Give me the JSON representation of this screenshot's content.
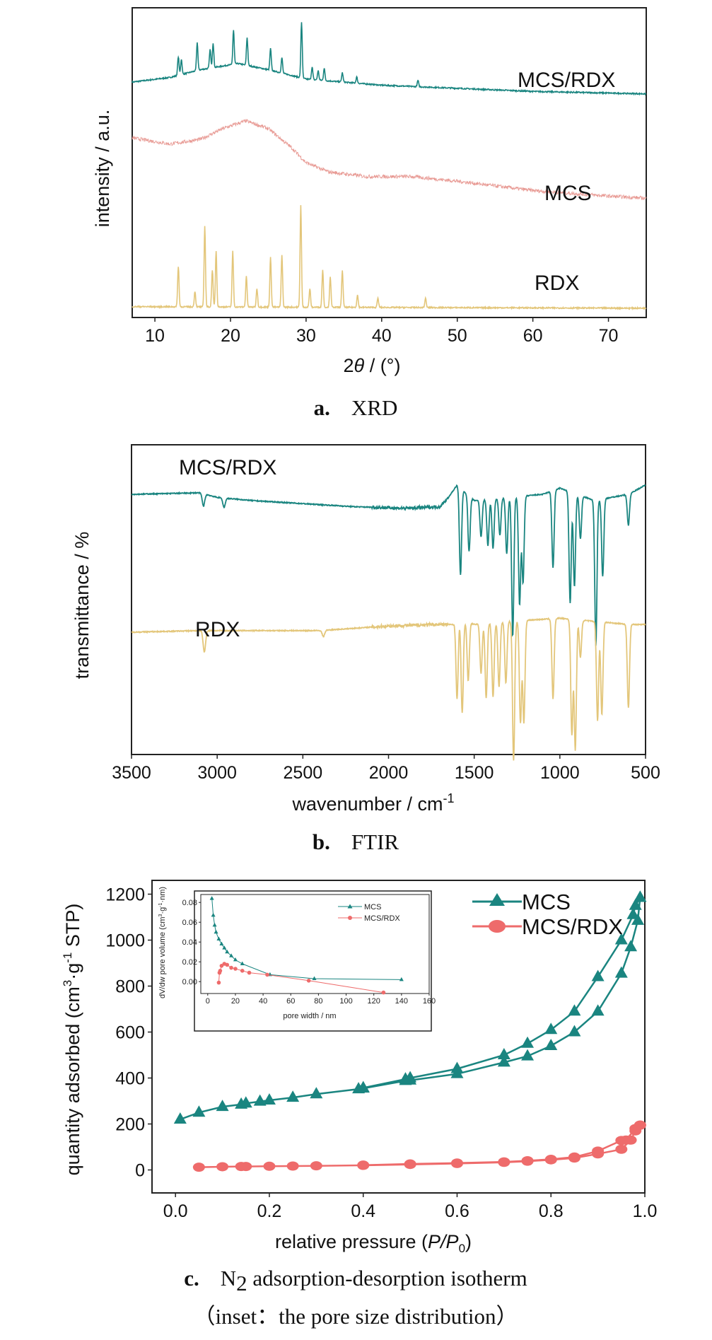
{
  "chart_data": [
    {
      "id": "xrd",
      "type": "line",
      "xlabel": "2θ / (°)",
      "ylabel": "intensity / a.u.",
      "xlim": [
        7,
        75
      ],
      "x_ticks": [
        10,
        20,
        30,
        40,
        50,
        60,
        70
      ],
      "caption": {
        "letter": "a.",
        "text": "XRD"
      },
      "series": [
        {
          "name": "MCS/RDX",
          "color": "#1a8580",
          "baseline": [
            [
              7,
              0.76
            ],
            [
              12,
              0.775
            ],
            [
              16,
              0.8
            ],
            [
              21,
              0.82
            ],
            [
              25,
              0.8
            ],
            [
              30,
              0.77
            ],
            [
              40,
              0.75
            ],
            [
              50,
              0.74
            ],
            [
              60,
              0.73
            ],
            [
              75,
              0.722
            ]
          ],
          "peaks": [
            [
              13.1,
              0.06
            ],
            [
              13.5,
              0.05
            ],
            [
              15.6,
              0.09
            ],
            [
              17.3,
              0.06
            ],
            [
              17.7,
              0.08
            ],
            [
              20.4,
              0.11
            ],
            [
              22.2,
              0.09
            ],
            [
              25.3,
              0.07
            ],
            [
              26.8,
              0.05
            ],
            [
              29.4,
              0.18
            ],
            [
              30.8,
              0.04
            ],
            [
              31.6,
              0.03
            ],
            [
              32.4,
              0.04
            ],
            [
              34.8,
              0.03
            ],
            [
              36.7,
              0.02
            ],
            [
              44.8,
              0.02
            ]
          ]
        },
        {
          "name": "MCS",
          "color": "#e89a94",
          "baseline": [
            [
              7,
              0.58
            ],
            [
              12,
              0.56
            ],
            [
              16,
              0.575
            ],
            [
              19,
              0.61
            ],
            [
              22,
              0.635
            ],
            [
              25,
              0.61
            ],
            [
              28,
              0.55
            ],
            [
              30,
              0.5
            ],
            [
              33,
              0.47
            ],
            [
              38,
              0.455
            ],
            [
              44,
              0.455
            ],
            [
              50,
              0.44
            ],
            [
              60,
              0.41
            ],
            [
              70,
              0.392
            ],
            [
              75,
              0.385
            ]
          ],
          "peaks": []
        },
        {
          "name": "RDX",
          "color": "#e3c67a",
          "baseline": [
            [
              7,
              0.035
            ],
            [
              75,
              0.03
            ]
          ],
          "peaks": [
            [
              13.1,
              0.13
            ],
            [
              15.3,
              0.05
            ],
            [
              16.6,
              0.26
            ],
            [
              17.6,
              0.12
            ],
            [
              18.1,
              0.18
            ],
            [
              20.3,
              0.18
            ],
            [
              22.1,
              0.1
            ],
            [
              23.5,
              0.06
            ],
            [
              25.3,
              0.16
            ],
            [
              26.8,
              0.17
            ],
            [
              29.3,
              0.33
            ],
            [
              30.5,
              0.06
            ],
            [
              32.2,
              0.12
            ],
            [
              33.2,
              0.1
            ],
            [
              34.8,
              0.12
            ],
            [
              36.8,
              0.04
            ],
            [
              39.5,
              0.03
            ],
            [
              45.8,
              0.03
            ]
          ]
        }
      ]
    },
    {
      "id": "ftir",
      "type": "line",
      "xlabel": "wavenumber / cm",
      "xlabel_sup": "-1",
      "ylabel": "transmittance / %",
      "xlim": [
        3500,
        500
      ],
      "x_ticks": [
        3500,
        3000,
        2500,
        2000,
        1500,
        1000,
        500
      ],
      "caption": {
        "letter": "b.",
        "text": "FTIR"
      },
      "series": [
        {
          "name": "MCS/RDX",
          "color": "#1a8580",
          "baseline": [
            [
              3500,
              0.84
            ],
            [
              3100,
              0.845
            ],
            [
              3000,
              0.83
            ],
            [
              2800,
              0.82
            ],
            [
              2500,
              0.81
            ],
            [
              2200,
              0.8
            ],
            [
              1900,
              0.795
            ],
            [
              1700,
              0.8
            ],
            [
              1650,
              0.83
            ],
            [
              1600,
              0.87
            ],
            [
              1500,
              0.82
            ],
            [
              1300,
              0.83
            ],
            [
              1100,
              0.84
            ],
            [
              1000,
              0.86
            ],
            [
              800,
              0.82
            ],
            [
              600,
              0.84
            ],
            [
              500,
              0.87
            ]
          ],
          "dips": [
            [
              3080,
              0.04
            ],
            [
              2960,
              0.03
            ],
            [
              1580,
              0.28
            ],
            [
              1530,
              0.18
            ],
            [
              1460,
              0.12
            ],
            [
              1420,
              0.15
            ],
            [
              1390,
              0.16
            ],
            [
              1350,
              0.12
            ],
            [
              1310,
              0.18
            ],
            [
              1275,
              0.45
            ],
            [
              1235,
              0.35
            ],
            [
              1215,
              0.28
            ],
            [
              1040,
              0.25
            ],
            [
              940,
              0.36
            ],
            [
              915,
              0.3
            ],
            [
              880,
              0.14
            ],
            [
              790,
              0.47
            ],
            [
              750,
              0.25
            ],
            [
              600,
              0.1
            ]
          ]
        },
        {
          "name": "RDX",
          "color": "#e3c67a",
          "baseline": [
            [
              3500,
              0.395
            ],
            [
              3100,
              0.4
            ],
            [
              2400,
              0.4
            ],
            [
              2000,
              0.415
            ],
            [
              1700,
              0.42
            ],
            [
              1620,
              0.42
            ],
            [
              1600,
              0.44
            ],
            [
              1500,
              0.42
            ],
            [
              1300,
              0.43
            ],
            [
              1000,
              0.44
            ],
            [
              800,
              0.43
            ],
            [
              600,
              0.42
            ],
            [
              500,
              0.42
            ]
          ],
          "dips": [
            [
              3075,
              0.07
            ],
            [
              2380,
              0.02
            ],
            [
              1600,
              0.26
            ],
            [
              1570,
              0.3
            ],
            [
              1535,
              0.19
            ],
            [
              1460,
              0.16
            ],
            [
              1430,
              0.24
            ],
            [
              1390,
              0.24
            ],
            [
              1355,
              0.21
            ],
            [
              1315,
              0.2
            ],
            [
              1270,
              0.45
            ],
            [
              1230,
              0.33
            ],
            [
              1210,
              0.33
            ],
            [
              1040,
              0.26
            ],
            [
              930,
              0.37
            ],
            [
              910,
              0.42
            ],
            [
              880,
              0.12
            ],
            [
              780,
              0.32
            ],
            [
              755,
              0.3
            ],
            [
              600,
              0.27
            ]
          ]
        }
      ]
    },
    {
      "id": "bet",
      "type": "line",
      "xlabel": "relative pressure (",
      "xlabel_italic": "P/P",
      "xlabel_sub": "0",
      "xlabel_end": ")",
      "ylabel": "quantity adsorbed (cm",
      "ylabel_sup3": "3",
      "ylabel_mid": "·g",
      "ylabel_sup": "-1",
      "ylabel_end": " STP)",
      "xlim": [
        -0.05,
        1.0
      ],
      "ylim": [
        -100,
        1260
      ],
      "x_ticks": [
        "0.0",
        "0.2",
        "0.4",
        "0.6",
        "0.8",
        "1.0"
      ],
      "y_ticks": [
        0,
        200,
        400,
        600,
        800,
        1000,
        1200
      ],
      "legend": "top-right",
      "caption": {
        "letter": "c.",
        "text_pre": "N",
        "text_sub": "2",
        "text_post": " adsorption-desorption isotherm",
        "line2": "（inset：the pore size distribution）"
      },
      "series": [
        {
          "name": "MCS",
          "color": "#1a8580",
          "marker": "triangle",
          "adsorption": [
            [
              0.01,
              220
            ],
            [
              0.05,
              250
            ],
            [
              0.1,
              275
            ],
            [
              0.14,
              285
            ],
            [
              0.15,
              290
            ],
            [
              0.18,
              298
            ],
            [
              0.2,
              303
            ],
            [
              0.25,
              315
            ],
            [
              0.3,
              330
            ],
            [
              0.39,
              352
            ],
            [
              0.4,
              355
            ],
            [
              0.49,
              388
            ],
            [
              0.5,
              390
            ],
            [
              0.6,
              418
            ],
            [
              0.7,
              468
            ],
            [
              0.75,
              495
            ],
            [
              0.8,
              540
            ],
            [
              0.85,
              600
            ],
            [
              0.9,
              690
            ],
            [
              0.95,
              855
            ],
            [
              0.97,
              970
            ],
            [
              0.985,
              1085
            ],
            [
              0.99,
              1185
            ]
          ],
          "desorption": [
            [
              0.99,
              1185
            ],
            [
              0.98,
              1150
            ],
            [
              0.975,
              1110
            ],
            [
              0.95,
              1000
            ],
            [
              0.9,
              840
            ],
            [
              0.85,
              690
            ],
            [
              0.8,
              610
            ],
            [
              0.75,
              550
            ],
            [
              0.7,
              500
            ],
            [
              0.6,
              440
            ],
            [
              0.5,
              400
            ],
            [
              0.49,
              395
            ],
            [
              0.4,
              357
            ]
          ]
        },
        {
          "name": "MCS/RDX",
          "color": "#ee6b6b",
          "marker": "circle",
          "adsorption": [
            [
              0.05,
              12
            ],
            [
              0.1,
              14
            ],
            [
              0.14,
              15
            ],
            [
              0.15,
              15
            ],
            [
              0.2,
              16
            ],
            [
              0.25,
              17
            ],
            [
              0.3,
              18
            ],
            [
              0.4,
              20
            ],
            [
              0.5,
              24
            ],
            [
              0.6,
              28
            ],
            [
              0.7,
              33
            ],
            [
              0.75,
              38
            ],
            [
              0.8,
              44
            ],
            [
              0.85,
              52
            ],
            [
              0.9,
              70
            ],
            [
              0.95,
              90
            ],
            [
              0.97,
              130
            ],
            [
              0.98,
              170
            ],
            [
              0.99,
              195
            ]
          ],
          "desorption": [
            [
              0.99,
              195
            ],
            [
              0.98,
              180
            ],
            [
              0.96,
              130
            ],
            [
              0.95,
              128
            ],
            [
              0.9,
              82
            ],
            [
              0.85,
              56
            ],
            [
              0.8,
              46
            ],
            [
              0.75,
              40
            ],
            [
              0.7,
              35
            ],
            [
              0.6,
              30
            ],
            [
              0.5,
              26
            ],
            [
              0.4,
              21
            ]
          ]
        }
      ],
      "inset": {
        "xlabel": "pore width / nm",
        "ylabel": "dV/dw pore volume (cm",
        "ylabel_sup3": "3",
        "ylabel_mid": "·g",
        "ylabel_sup": "-1",
        "ylabel_end": "·nm)",
        "xlim": [
          -5,
          160
        ],
        "ylim": [
          -0.012,
          0.088
        ],
        "x_ticks": [
          0,
          20,
          40,
          60,
          80,
          100,
          120,
          140,
          160
        ],
        "y_ticks": [
          "0.00",
          "0.02",
          "0.04",
          "0.06",
          "0.08"
        ],
        "legend": "top-right",
        "series": [
          {
            "name": "MCS",
            "color": "#1a8580",
            "marker": "triangle",
            "points": [
              [
                3,
                0.084
              ],
              [
                4,
                0.067
              ],
              [
                5,
                0.057
              ],
              [
                6,
                0.05
              ],
              [
                8,
                0.043
              ],
              [
                10,
                0.038
              ],
              [
                12,
                0.034
              ],
              [
                14,
                0.03
              ],
              [
                17,
                0.026
              ],
              [
                20,
                0.022
              ],
              [
                25,
                0.018
              ],
              [
                45,
                0.007
              ],
              [
                77,
                0.003
              ],
              [
                140,
                0.002
              ]
            ]
          },
          {
            "name": "MCS/RDX",
            "color": "#ee6b6b",
            "marker": "circle",
            "points": [
              [
                8,
                -0.001
              ],
              [
                8.5,
                0.009
              ],
              [
                9,
                0.011
              ],
              [
                10,
                0.016
              ],
              [
                12,
                0.018
              ],
              [
                14,
                0.017
              ],
              [
                17,
                0.014
              ],
              [
                20,
                0.013
              ],
              [
                25,
                0.011
              ],
              [
                30,
                0.009
              ],
              [
                43,
                0.007
              ],
              [
                73,
                0.001
              ],
              [
                127,
                -0.011
              ]
            ]
          }
        ]
      }
    }
  ]
}
